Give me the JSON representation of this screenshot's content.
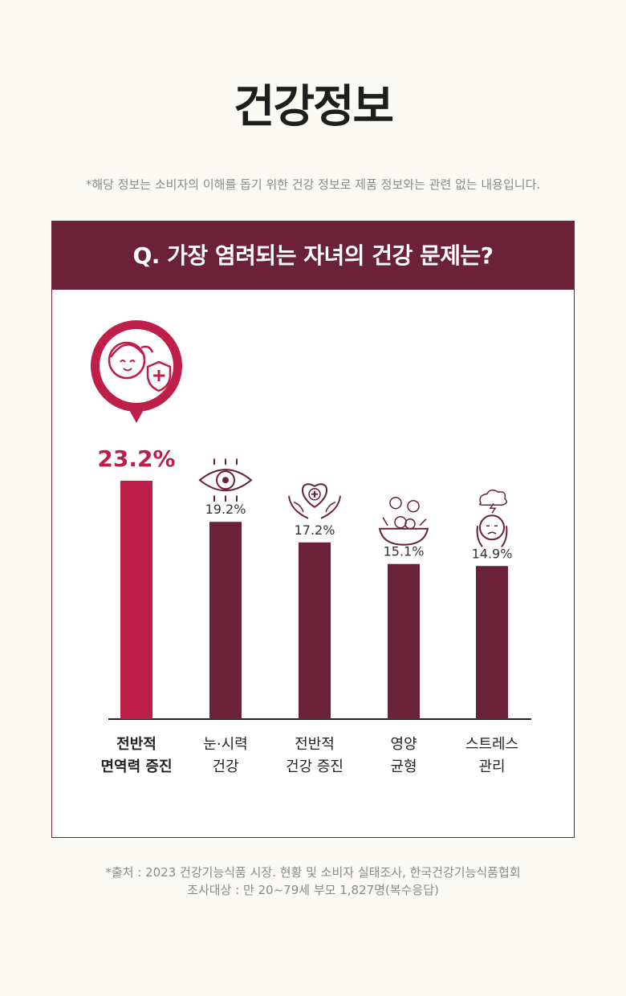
{
  "title": "건강정보",
  "disclaimer": "*해당 정보는 소비자의 이해를 돕기 위한 건강 정보로 제품 정보와는 관련 없는 내용입니다.",
  "colors": {
    "highlight": "#be1f48",
    "bar": "#6b2238",
    "accent": "#6b2238"
  },
  "chart_data": {
    "type": "bar",
    "title": "Q. 가장 염려되는 자녀의 건강 문제는?",
    "categories": [
      [
        "전반적",
        "면역력 증진"
      ],
      [
        "눈·시력",
        "건강"
      ],
      [
        "전반적",
        "건강 증진"
      ],
      [
        "영양",
        "균형"
      ],
      [
        "스트레스",
        "관리"
      ]
    ],
    "values": [
      23.2,
      19.2,
      17.2,
      15.1,
      14.9
    ],
    "value_labels": [
      "23.2%",
      "19.2%",
      "17.2%",
      "15.1%",
      "14.9%"
    ],
    "icons": [
      "child-immunity-shield-icon",
      "eye-icon",
      "heart-hands-care-icon",
      "fruits-vegetables-bowl-icon",
      "stressed-person-icon"
    ],
    "highlight_index": 0,
    "ylim": [
      0,
      23.2
    ],
    "grid": false
  },
  "source": {
    "line1": "*출처 : 2023 건강기능식품 시장. 현황 및 소비자 실태조사, 한국건강기능식품협회",
    "line2": "조사대상 : 만 20~79세 부모 1,827명(복수응답)"
  }
}
